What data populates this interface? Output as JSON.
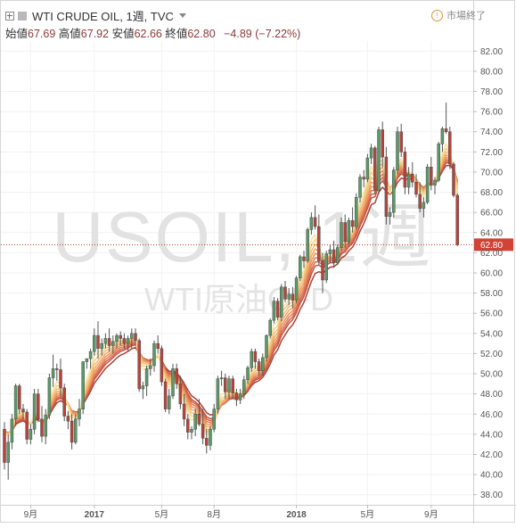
{
  "header": {
    "title": "WTI CRUDE OIL, 1週, TVC",
    "ohlc": [
      {
        "label": "始値",
        "value": "67.69"
      },
      {
        "label": "高値",
        "value": "67.92"
      },
      {
        "label": "安値",
        "value": "62.66"
      },
      {
        "label": "終値",
        "value": "62.80"
      }
    ],
    "change": "−4.89 (−7.22%)"
  },
  "market_status": "市場終了",
  "watermark": {
    "symbol": "USOIL, 1週",
    "description": "WTI原油CFD"
  },
  "colors": {
    "up": "#5b9a68",
    "down": "#b8443a",
    "price_line": "#c0392b",
    "price_label_bg": "#d14336",
    "ribbon": [
      "#f7e2a0",
      "#f5cf85",
      "#f2bb73",
      "#efa565",
      "#ea905c",
      "#e27b54",
      "#d4654b",
      "#c25241",
      "#ab4236"
    ]
  },
  "chart_data": {
    "type": "candlestick",
    "title": "WTI CRUDE OIL, 1週, TVC",
    "ylim": [
      37,
      83
    ],
    "y_ticks": [
      38,
      40,
      42,
      44,
      46,
      48,
      50,
      52,
      54,
      56,
      58,
      60,
      62,
      64,
      66,
      68,
      70,
      72,
      74,
      76,
      78,
      80,
      82
    ],
    "x_ticks": [
      {
        "label": "9月",
        "index": 7
      },
      {
        "label": "2017",
        "index": 24
      },
      {
        "label": "5月",
        "index": 42
      },
      {
        "label": "8月",
        "index": 56
      },
      {
        "label": "2018",
        "index": 78
      },
      {
        "label": "5月",
        "index": 97
      },
      {
        "label": "9月",
        "index": 114
      }
    ],
    "last_price": 62.8,
    "candles": [
      [
        44.5,
        45.2,
        40.5,
        41.2
      ],
      [
        41.2,
        44.0,
        39.5,
        43.2
      ],
      [
        43.2,
        46.0,
        42.5,
        45.5
      ],
      [
        45.5,
        49.0,
        44.8,
        48.8
      ],
      [
        48.8,
        49.0,
        46.0,
        46.5
      ],
      [
        46.5,
        47.0,
        45.5,
        46.2
      ],
      [
        46.2,
        46.5,
        43.0,
        43.5
      ],
      [
        43.5,
        45.0,
        43.0,
        44.5
      ],
      [
        44.5,
        48.5,
        44.0,
        48.0
      ],
      [
        48.0,
        48.5,
        45.2,
        45.5
      ],
      [
        45.5,
        46.8,
        43.2,
        43.8
      ],
      [
        43.8,
        46.5,
        43.0,
        45.9
      ],
      [
        45.9,
        50.0,
        45.5,
        49.6
      ],
      [
        49.6,
        51.9,
        48.7,
        50.5
      ],
      [
        50.5,
        51.0,
        49.3,
        50.4
      ],
      [
        50.4,
        51.5,
        47.8,
        48.6
      ],
      [
        48.6,
        49.0,
        45.3,
        45.8
      ],
      [
        45.8,
        46.3,
        44.5,
        45.3
      ],
      [
        45.3,
        46.0,
        42.5,
        43.2
      ],
      [
        43.2,
        46.0,
        43.0,
        45.5
      ],
      [
        45.5,
        47.5,
        44.8,
        46.5
      ],
      [
        46.5,
        51.0,
        46.0,
        51.2
      ],
      [
        51.2,
        51.5,
        50.5,
        51.5
      ],
      [
        51.5,
        52.5,
        50.5,
        52.2
      ],
      [
        52.2,
        54.5,
        51.8,
        53.8
      ],
      [
        53.8,
        55.2,
        51.5,
        52.5
      ],
      [
        52.5,
        53.5,
        51.8,
        53.0
      ],
      [
        53.0,
        54.0,
        52.5,
        53.5
      ],
      [
        53.5,
        54.5,
        52.2,
        52.8
      ],
      [
        52.8,
        53.8,
        52.0,
        53.2
      ],
      [
        53.2,
        54.0,
        52.5,
        53.8
      ],
      [
        53.8,
        54.2,
        52.8,
        53.5
      ],
      [
        53.5,
        54.0,
        52.5,
        53.0
      ],
      [
        53.0,
        53.8,
        52.2,
        53.5
      ],
      [
        53.5,
        54.5,
        52.5,
        54.0
      ],
      [
        54.0,
        54.5,
        52.8,
        53.3
      ],
      [
        53.3,
        53.5,
        48.2,
        48.5
      ],
      [
        48.5,
        49.2,
        47.5,
        48.8
      ],
      [
        48.8,
        50.8,
        47.8,
        50.5
      ],
      [
        50.5,
        51.5,
        49.8,
        50.8
      ],
      [
        50.8,
        53.3,
        50.2,
        53.0
      ],
      [
        53.0,
        53.8,
        52.0,
        52.5
      ],
      [
        52.5,
        52.8,
        48.8,
        49.2
      ],
      [
        49.2,
        49.5,
        46.2,
        46.5
      ],
      [
        46.5,
        48.5,
        46.0,
        47.8
      ],
      [
        47.8,
        51.0,
        47.5,
        50.5
      ],
      [
        50.5,
        51.0,
        48.5,
        49.0
      ],
      [
        49.0,
        49.8,
        46.5,
        47.0
      ],
      [
        47.0,
        48.0,
        44.8,
        45.5
      ],
      [
        45.5,
        46.0,
        43.5,
        44.2
      ],
      [
        44.2,
        44.8,
        43.5,
        44.5
      ],
      [
        44.5,
        46.5,
        43.8,
        46.0
      ],
      [
        46.0,
        47.5,
        44.8,
        45.0
      ],
      [
        45.0,
        46.5,
        43.0,
        43.6
      ],
      [
        43.6,
        44.5,
        42.1,
        42.9
      ],
      [
        42.9,
        44.8,
        42.4,
        44.5
      ],
      [
        44.5,
        47.0,
        44.2,
        46.5
      ],
      [
        46.5,
        49.8,
        46.0,
        49.5
      ],
      [
        49.5,
        50.3,
        48.8,
        49.6
      ],
      [
        49.6,
        50.0,
        47.5,
        48.2
      ],
      [
        48.2,
        49.8,
        47.5,
        49.5
      ],
      [
        49.5,
        49.8,
        47.5,
        48.1
      ],
      [
        48.1,
        48.5,
        46.8,
        47.4
      ],
      [
        47.4,
        48.5,
        47.0,
        48.0
      ],
      [
        48.0,
        49.8,
        47.5,
        49.4
      ],
      [
        49.4,
        50.8,
        49.0,
        50.6
      ],
      [
        50.6,
        52.5,
        50.2,
        52.2
      ],
      [
        52.2,
        52.5,
        50.5,
        51.2
      ],
      [
        51.2,
        51.5,
        49.8,
        50.3
      ],
      [
        50.3,
        52.0,
        49.8,
        51.6
      ],
      [
        51.6,
        53.9,
        51.2,
        53.8
      ],
      [
        53.8,
        55.5,
        53.5,
        55.3
      ],
      [
        55.3,
        57.6,
        55.0,
        57.2
      ],
      [
        57.2,
        57.5,
        55.3,
        55.6
      ],
      [
        55.6,
        58.9,
        55.2,
        58.6
      ],
      [
        58.6,
        59.2,
        57.1,
        57.4
      ],
      [
        57.4,
        58.5,
        56.8,
        57.9
      ],
      [
        57.9,
        58.6,
        56.5,
        57.3
      ],
      [
        57.3,
        59.7,
        57.0,
        59.5
      ],
      [
        59.5,
        61.8,
        59.2,
        61.6
      ],
      [
        61.6,
        62.2,
        60.5,
        61.2
      ],
      [
        61.2,
        64.5,
        61.0,
        64.3
      ],
      [
        64.3,
        66.0,
        63.8,
        65.5
      ],
      [
        65.5,
        66.7,
        64.3,
        64.6
      ],
      [
        64.6,
        65.8,
        60.8,
        61.2
      ],
      [
        61.2,
        62.0,
        58.0,
        59.3
      ],
      [
        59.3,
        62.2,
        59.0,
        61.9
      ],
      [
        61.9,
        62.8,
        61.0,
        62.3
      ],
      [
        62.3,
        63.2,
        60.5,
        61.0
      ],
      [
        61.0,
        62.8,
        60.8,
        62.5
      ],
      [
        62.5,
        65.5,
        62.2,
        65.0
      ],
      [
        65.0,
        65.8,
        62.5,
        63.1
      ],
      [
        63.1,
        65.5,
        62.8,
        65.2
      ],
      [
        65.2,
        66.5,
        64.0,
        64.6
      ],
      [
        64.6,
        67.9,
        64.3,
        67.5
      ],
      [
        67.5,
        69.8,
        67.0,
        69.5
      ],
      [
        69.5,
        70.2,
        68.5,
        69.3
      ],
      [
        69.3,
        71.8,
        69.0,
        71.4
      ],
      [
        71.4,
        72.8,
        70.8,
        72.4
      ],
      [
        72.4,
        72.6,
        67.8,
        68.2
      ],
      [
        68.2,
        74.5,
        67.8,
        74.2
      ],
      [
        74.2,
        75.0,
        70.5,
        71.5
      ],
      [
        71.5,
        72.5,
        64.8,
        65.6
      ],
      [
        65.6,
        66.5,
        64.8,
        66.0
      ],
      [
        66.0,
        70.5,
        65.5,
        70.2
      ],
      [
        70.2,
        74.5,
        69.8,
        74.0
      ],
      [
        74.0,
        74.8,
        71.5,
        72.0
      ],
      [
        72.0,
        72.5,
        67.8,
        68.5
      ],
      [
        68.5,
        70.5,
        67.8,
        69.8
      ],
      [
        69.8,
        71.0,
        68.5,
        69.0
      ],
      [
        69.0,
        69.8,
        67.5,
        67.8
      ],
      [
        67.8,
        69.0,
        66.0,
        66.4
      ],
      [
        66.4,
        67.5,
        65.5,
        67.0
      ],
      [
        67.0,
        70.8,
        66.8,
        70.5
      ],
      [
        70.5,
        71.5,
        68.2,
        68.7
      ],
      [
        68.7,
        69.5,
        67.8,
        69.2
      ],
      [
        69.2,
        73.0,
        69.0,
        72.8
      ],
      [
        72.8,
        74.5,
        72.0,
        74.3
      ],
      [
        74.3,
        76.9,
        73.8,
        74.0
      ],
      [
        74.0,
        74.5,
        70.3,
        70.8
      ],
      [
        70.8,
        71.0,
        67.5,
        67.7
      ],
      [
        67.7,
        67.9,
        62.66,
        62.8
      ]
    ]
  }
}
